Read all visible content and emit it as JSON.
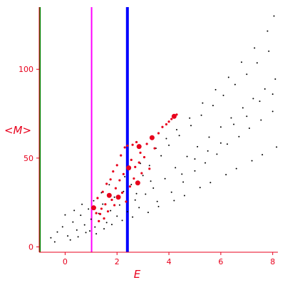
{
  "chart_data": {
    "type": "scatter",
    "title": "",
    "xlabel": "E",
    "ylabel": "<M>",
    "xlim": [
      -1.0,
      8.2
    ],
    "ylim": [
      -3,
      135
    ],
    "x_ticks": [
      0,
      2,
      4,
      6,
      8
    ],
    "y_ticks": [
      0,
      50,
      100
    ],
    "grid": false,
    "vertical_lines": [
      {
        "x": -0.97,
        "color": "#008000"
      },
      {
        "x": 1.02,
        "color": "#ff00ff"
      },
      {
        "x": 2.4,
        "color": "#0000ff"
      }
    ],
    "series": [
      {
        "color": "#000000",
        "points": [
          [
            -0.55,
            5.1
          ],
          [
            -0.3,
            8.4
          ],
          [
            -0.1,
            11.3
          ],
          [
            0.1,
            6.2
          ],
          [
            0.3,
            14.0
          ],
          [
            0.45,
            9.5
          ],
          [
            0.6,
            17.8
          ],
          [
            0.75,
            12.4
          ],
          [
            0.9,
            21.3
          ],
          [
            1.0,
            15.6
          ],
          [
            1.15,
            11.2
          ],
          [
            1.3,
            18.8
          ],
          [
            1.45,
            24.1
          ],
          [
            1.6,
            13.7
          ],
          [
            1.75,
            20.4
          ],
          [
            1.9,
            28.0
          ],
          [
            2.0,
            17.3
          ],
          [
            2.1,
            23.6
          ],
          [
            2.25,
            31.2
          ],
          [
            2.4,
            19.8
          ],
          [
            2.55,
            35.1
          ],
          [
            2.7,
            26.4
          ],
          [
            2.85,
            22.1
          ],
          [
            3.0,
            40.2
          ],
          [
            3.1,
            29.7
          ],
          [
            3.25,
            45.8
          ],
          [
            3.4,
            33.1
          ],
          [
            3.55,
            25.6
          ],
          [
            3.7,
            51.3
          ],
          [
            3.85,
            38.4
          ],
          [
            4.0,
            57.2
          ],
          [
            4.1,
            30.8
          ],
          [
            4.25,
            44.6
          ],
          [
            4.4,
            62.7
          ],
          [
            4.55,
            36.5
          ],
          [
            4.7,
            50.9
          ],
          [
            4.85,
            68.3
          ],
          [
            5.0,
            42.8
          ],
          [
            5.1,
            56.4
          ],
          [
            5.25,
            74.1
          ],
          [
            5.4,
            47.3
          ],
          [
            5.55,
            61.8
          ],
          [
            5.7,
            79.6
          ],
          [
            5.85,
            52.2
          ],
          [
            6.0,
            67.5
          ],
          [
            6.1,
            85.3
          ],
          [
            6.25,
            57.9
          ],
          [
            6.4,
            72.6
          ],
          [
            6.55,
            91.4
          ],
          [
            6.7,
            62.1
          ],
          [
            6.85,
            78.3
          ],
          [
            7.0,
            97.2
          ],
          [
            7.1,
            66.8
          ],
          [
            7.25,
            83.5
          ],
          [
            7.4,
            103.6
          ],
          [
            7.55,
            71.4
          ],
          [
            7.7,
            88.9
          ],
          [
            7.85,
            110.2
          ],
          [
            8.0,
            76.3
          ],
          [
            8.1,
            94.5
          ],
          [
            -0.4,
            2.8
          ],
          [
            0.2,
            3.9
          ],
          [
            0.5,
            5.7
          ],
          [
            0.8,
            8.1
          ],
          [
            1.2,
            7.4
          ],
          [
            1.5,
            10.2
          ],
          [
            1.8,
            12.6
          ],
          [
            2.2,
            14.9
          ],
          [
            2.6,
            16.8
          ],
          [
            3.2,
            19.4
          ],
          [
            3.6,
            22.7
          ],
          [
            4.2,
            26.1
          ],
          [
            4.6,
            28.9
          ],
          [
            5.2,
            33.4
          ],
          [
            5.6,
            36.2
          ],
          [
            6.2,
            40.7
          ],
          [
            6.6,
            44.1
          ],
          [
            7.2,
            48.5
          ],
          [
            7.6,
            51.9
          ],
          [
            8.15,
            56.2
          ],
          [
            1.1,
            26.0
          ],
          [
            1.4,
            30.5
          ],
          [
            1.7,
            35.0
          ],
          [
            2.3,
            39.5
          ],
          [
            2.9,
            47.0
          ],
          [
            3.5,
            55.5
          ],
          [
            4.3,
            66.0
          ],
          [
            5.3,
            81.0
          ],
          [
            6.3,
            95.5
          ],
          [
            7.3,
            112.0
          ],
          [
            7.8,
            121.5
          ],
          [
            8.05,
            130.0
          ],
          [
            6.8,
            104.0
          ],
          [
            5.8,
            88.5
          ],
          [
            4.8,
            72.5
          ],
          [
            3.9,
            61.0
          ],
          [
            0.0,
            18.0
          ],
          [
            0.35,
            20.5
          ],
          [
            0.65,
            24.0
          ],
          [
            0.95,
            9.0
          ],
          [
            4.5,
            41.0
          ],
          [
            5.0,
            49.5
          ],
          [
            5.5,
            54.0
          ],
          [
            6.0,
            58.5
          ],
          [
            6.5,
            69.0
          ],
          [
            7.0,
            73.5
          ],
          [
            7.5,
            82.0
          ],
          [
            8.0,
            86.0
          ],
          [
            3.3,
            37.0
          ],
          [
            2.75,
            30.0
          ]
        ]
      },
      {
        "color": "#e8001c",
        "points": [
          [
            1.1,
            22.0
          ],
          [
            1.25,
            27.5
          ],
          [
            1.35,
            18.5
          ],
          [
            1.45,
            31.0
          ],
          [
            1.55,
            24.0
          ],
          [
            1.6,
            35.5
          ],
          [
            1.65,
            20.0
          ],
          [
            1.7,
            29.0
          ],
          [
            1.75,
            38.0
          ],
          [
            1.8,
            26.5
          ],
          [
            1.85,
            42.5
          ],
          [
            1.9,
            23.5
          ],
          [
            1.95,
            33.0
          ],
          [
            2.0,
            46.0
          ],
          [
            2.05,
            28.0
          ],
          [
            2.1,
            37.5
          ],
          [
            2.15,
            51.5
          ],
          [
            2.2,
            30.5
          ],
          [
            2.25,
            41.0
          ],
          [
            2.3,
            56.0
          ],
          [
            2.35,
            25.5
          ],
          [
            2.45,
            44.5
          ],
          [
            2.5,
            34.0
          ],
          [
            2.55,
            49.0
          ],
          [
            2.6,
            57.5
          ],
          [
            2.65,
            38.5
          ],
          [
            2.7,
            45.0
          ],
          [
            2.75,
            59.0
          ],
          [
            2.8,
            36.0
          ],
          [
            2.85,
            47.5
          ],
          [
            2.9,
            53.0
          ],
          [
            2.95,
            41.5
          ],
          [
            3.05,
            50.5
          ],
          [
            3.15,
            58.0
          ],
          [
            3.25,
            44.0
          ],
          [
            3.35,
            61.5
          ],
          [
            3.45,
            55.5
          ],
          [
            3.6,
            64.0
          ],
          [
            3.75,
            67.5
          ],
          [
            3.9,
            69.0
          ],
          [
            4.0,
            70.5
          ],
          [
            4.1,
            72.0
          ],
          [
            4.2,
            73.5
          ],
          [
            4.3,
            74.5
          ],
          [
            1.5,
            16.0
          ],
          [
            1.3,
            14.5
          ],
          [
            1.2,
            19.0
          ],
          [
            1.4,
            21.5
          ],
          [
            2.4,
            57.0
          ],
          [
            2.85,
            56.5
          ]
        ]
      }
    ]
  }
}
